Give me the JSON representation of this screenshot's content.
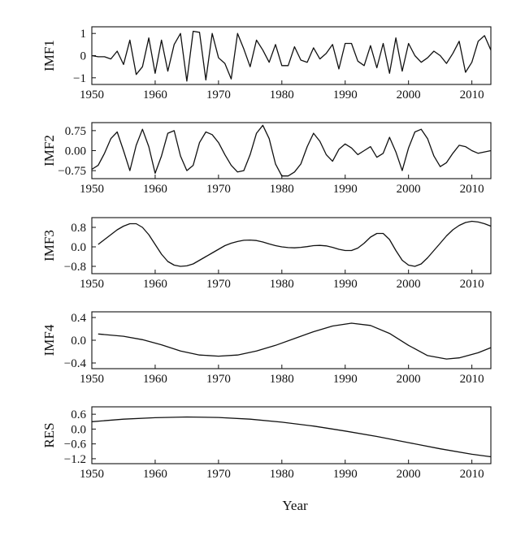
{
  "figure": {
    "xlabel": "Year"
  },
  "chart_data": [
    {
      "type": "line",
      "ylabel": "IMF1",
      "xlim": [
        1950,
        2013
      ],
      "ylim": [
        -1.3,
        1.3
      ],
      "xticks": [
        1950,
        1960,
        1970,
        1980,
        1990,
        2000,
        2010
      ],
      "xtick_labels": [
        "1950",
        "1960",
        "1970",
        "1980",
        "1990",
        "2000",
        "2010"
      ],
      "yticks": [
        1,
        0,
        -1
      ],
      "ytick_labels": [
        "1",
        "0",
        "−1"
      ],
      "x": [
        1950,
        1951,
        1952,
        1953,
        1954,
        1955,
        1956,
        1957,
        1958,
        1959,
        1960,
        1961,
        1962,
        1963,
        1964,
        1965,
        1966,
        1967,
        1968,
        1969,
        1970,
        1971,
        1972,
        1973,
        1974,
        1975,
        1976,
        1977,
        1978,
        1979,
        1980,
        1981,
        1982,
        1983,
        1984,
        1985,
        1986,
        1987,
        1988,
        1989,
        1990,
        1991,
        1992,
        1993,
        1994,
        1995,
        1996,
        1997,
        1998,
        1999,
        2000,
        2001,
        2002,
        2003,
        2004,
        2005,
        2006,
        2007,
        2008,
        2009,
        2010,
        2011,
        2012,
        2013
      ],
      "y": [
        0.0,
        -0.05,
        -0.05,
        -0.15,
        0.2,
        -0.4,
        0.7,
        -0.85,
        -0.5,
        0.8,
        -0.8,
        0.7,
        -0.7,
        0.5,
        1.0,
        -1.15,
        1.1,
        1.05,
        -1.1,
        1.0,
        -0.1,
        -0.35,
        -1.05,
        1.0,
        0.3,
        -0.5,
        0.7,
        0.25,
        -0.3,
        0.5,
        -0.45,
        -0.45,
        0.4,
        -0.2,
        -0.3,
        0.35,
        -0.15,
        0.1,
        0.5,
        -0.6,
        0.55,
        0.55,
        -0.25,
        -0.45,
        0.45,
        -0.55,
        0.55,
        -0.8,
        0.8,
        -0.7,
        0.55,
        0.0,
        -0.3,
        -0.1,
        0.2,
        0.0,
        -0.35,
        0.1,
        0.65,
        -0.75,
        -0.3,
        0.65,
        0.9,
        0.25
      ]
    },
    {
      "type": "line",
      "ylabel": "IMF2",
      "xlim": [
        1950,
        2013
      ],
      "ylim": [
        -1.05,
        1.05
      ],
      "xticks": [
        1950,
        1960,
        1970,
        1980,
        1990,
        2000,
        2010
      ],
      "xtick_labels": [
        "1950",
        "1960",
        "1970",
        "1980",
        "1990",
        "2000",
        "2010"
      ],
      "yticks": [
        0.75,
        0.0,
        -0.75
      ],
      "ytick_labels": [
        "0.75",
        "0.00",
        "−0.75"
      ],
      "x": [
        1950,
        1951,
        1952,
        1953,
        1954,
        1955,
        1956,
        1957,
        1958,
        1959,
        1960,
        1961,
        1962,
        1963,
        1964,
        1965,
        1966,
        1967,
        1968,
        1969,
        1970,
        1971,
        1972,
        1973,
        1974,
        1975,
        1976,
        1977,
        1978,
        1979,
        1980,
        1981,
        1982,
        1983,
        1984,
        1985,
        1986,
        1987,
        1988,
        1989,
        1990,
        1991,
        1992,
        1993,
        1994,
        1995,
        1996,
        1997,
        1998,
        1999,
        2000,
        2001,
        2002,
        2003,
        2004,
        2005,
        2006,
        2007,
        2008,
        2009,
        2010,
        2011,
        2012,
        2013
      ],
      "y": [
        -0.7,
        -0.55,
        -0.1,
        0.45,
        0.7,
        0.0,
        -0.75,
        0.2,
        0.8,
        0.15,
        -0.85,
        -0.2,
        0.65,
        0.75,
        -0.2,
        -0.75,
        -0.55,
        0.3,
        0.7,
        0.6,
        0.3,
        -0.15,
        -0.55,
        -0.8,
        -0.75,
        -0.15,
        0.65,
        0.95,
        0.45,
        -0.5,
        -0.95,
        -0.95,
        -0.8,
        -0.5,
        0.15,
        0.65,
        0.35,
        -0.15,
        -0.4,
        0.05,
        0.25,
        0.1,
        -0.15,
        0.0,
        0.15,
        -0.25,
        -0.1,
        0.5,
        -0.05,
        -0.75,
        0.1,
        0.7,
        0.8,
        0.45,
        -0.2,
        -0.6,
        -0.45,
        -0.1,
        0.2,
        0.15,
        0.0,
        -0.1,
        -0.05,
        0.0
      ]
    },
    {
      "type": "line",
      "ylabel": "IMF3",
      "xlim": [
        1950,
        2013
      ],
      "ylim": [
        -1.1,
        1.2
      ],
      "xticks": [
        1950,
        1960,
        1970,
        1980,
        1990,
        2000,
        2010
      ],
      "xtick_labels": [
        "1950",
        "1960",
        "1970",
        "1980",
        "1990",
        "2000",
        "2010"
      ],
      "yticks": [
        0.8,
        0.0,
        -0.8
      ],
      "ytick_labels": [
        "0.8",
        "0.0",
        "−0.8"
      ],
      "x": [
        1951,
        1952,
        1953,
        1954,
        1955,
        1956,
        1957,
        1958,
        1959,
        1960,
        1961,
        1962,
        1963,
        1964,
        1965,
        1966,
        1967,
        1968,
        1969,
        1970,
        1971,
        1972,
        1973,
        1974,
        1975,
        1976,
        1977,
        1978,
        1979,
        1980,
        1981,
        1982,
        1983,
        1984,
        1985,
        1986,
        1987,
        1988,
        1989,
        1990,
        1991,
        1992,
        1993,
        1994,
        1995,
        1996,
        1997,
        1998,
        1999,
        2000,
        2001,
        2002,
        2003,
        2004,
        2005,
        2006,
        2007,
        2008,
        2009,
        2010,
        2011,
        2012,
        2013
      ],
      "y": [
        0.1,
        0.3,
        0.5,
        0.7,
        0.85,
        0.95,
        0.95,
        0.8,
        0.5,
        0.1,
        -0.3,
        -0.6,
        -0.75,
        -0.8,
        -0.78,
        -0.7,
        -0.55,
        -0.4,
        -0.25,
        -0.1,
        0.05,
        0.15,
        0.22,
        0.27,
        0.28,
        0.26,
        0.2,
        0.12,
        0.05,
        0.0,
        -0.03,
        -0.04,
        -0.02,
        0.01,
        0.05,
        0.06,
        0.04,
        -0.02,
        -0.1,
        -0.15,
        -0.15,
        -0.05,
        0.15,
        0.4,
        0.55,
        0.55,
        0.3,
        -0.15,
        -0.55,
        -0.75,
        -0.8,
        -0.7,
        -0.45,
        -0.15,
        0.15,
        0.45,
        0.7,
        0.88,
        1.0,
        1.05,
        1.02,
        0.95,
        0.85
      ]
    },
    {
      "type": "line",
      "ylabel": "IMF4",
      "xlim": [
        1950,
        2013
      ],
      "ylim": [
        -0.5,
        0.5
      ],
      "xticks": [
        1950,
        1960,
        1970,
        1980,
        1990,
        2000,
        2010
      ],
      "xtick_labels": [
        "1950",
        "1960",
        "1970",
        "1980",
        "1990",
        "2000",
        "2010"
      ],
      "yticks": [
        0.4,
        0.0,
        -0.4
      ],
      "ytick_labels": [
        "0.4",
        "0.0",
        "−0.4"
      ],
      "x": [
        1951,
        1955,
        1958,
        1961,
        1964,
        1967,
        1970,
        1973,
        1976,
        1979,
        1982,
        1985,
        1988,
        1991,
        1994,
        1997,
        2000,
        2003,
        2006,
        2008,
        2011,
        2013
      ],
      "y": [
        0.11,
        0.07,
        0.01,
        -0.08,
        -0.19,
        -0.26,
        -0.28,
        -0.26,
        -0.19,
        -0.09,
        0.03,
        0.15,
        0.25,
        0.3,
        0.26,
        0.12,
        -0.09,
        -0.27,
        -0.33,
        -0.31,
        -0.22,
        -0.13
      ]
    },
    {
      "type": "line",
      "ylabel": "RES",
      "xlim": [
        1950,
        2013
      ],
      "ylim": [
        -1.4,
        0.9
      ],
      "xticks": [
        1950,
        1960,
        1970,
        1980,
        1990,
        2000,
        2010
      ],
      "xtick_labels": [
        "1950",
        "1960",
        "1970",
        "1980",
        "1990",
        "2000",
        "2010"
      ],
      "yticks": [
        0.6,
        0.0,
        -0.6,
        -1.2
      ],
      "ytick_labels": [
        "0.6",
        "0.0",
        "−0.6",
        "−1.2"
      ],
      "x": [
        1950,
        1955,
        1960,
        1965,
        1970,
        1975,
        1980,
        1985,
        1990,
        1995,
        2000,
        2005,
        2010,
        2013
      ],
      "y": [
        0.3,
        0.4,
        0.46,
        0.49,
        0.47,
        0.4,
        0.28,
        0.12,
        -0.08,
        -0.3,
        -0.55,
        -0.8,
        -1.02,
        -1.12
      ]
    }
  ]
}
